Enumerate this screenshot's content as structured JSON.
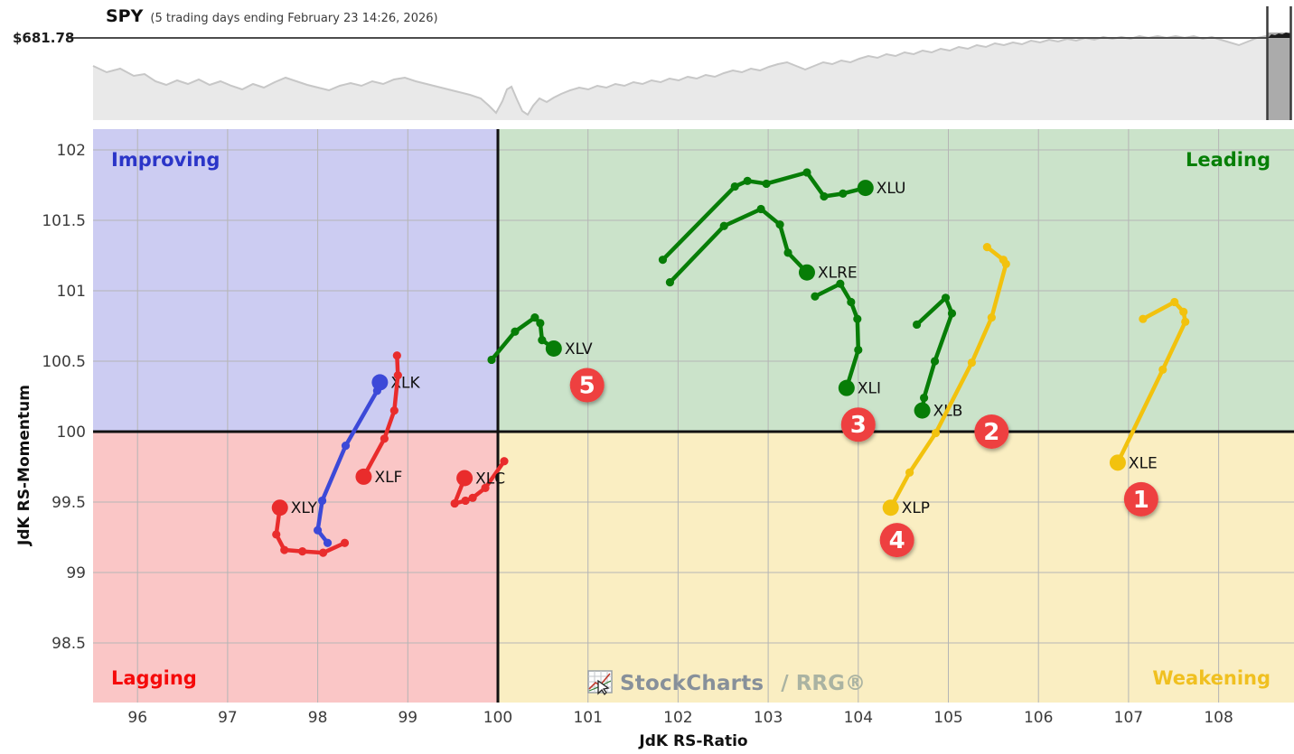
{
  "header": {
    "symbol": "SPY",
    "subtitle": "(5 trading days ending February 23 14:26, 2026)",
    "price": "$681.78",
    "sparkline": [
      [
        103,
        73
      ],
      [
        118,
        80
      ],
      [
        133,
        76
      ],
      [
        148,
        84
      ],
      [
        160,
        82
      ],
      [
        172,
        90
      ],
      [
        184,
        94
      ],
      [
        196,
        89
      ],
      [
        208,
        93
      ],
      [
        220,
        88
      ],
      [
        232,
        94
      ],
      [
        244,
        90
      ],
      [
        256,
        95
      ],
      [
        268,
        99
      ],
      [
        280,
        93
      ],
      [
        292,
        97
      ],
      [
        304,
        91
      ],
      [
        316,
        86
      ],
      [
        328,
        90
      ],
      [
        340,
        94
      ],
      [
        352,
        97
      ],
      [
        364,
        100
      ],
      [
        376,
        95
      ],
      [
        388,
        92
      ],
      [
        400,
        95
      ],
      [
        412,
        90
      ],
      [
        424,
        93
      ],
      [
        436,
        88
      ],
      [
        448,
        86
      ],
      [
        460,
        90
      ],
      [
        472,
        93
      ],
      [
        484,
        96
      ],
      [
        496,
        99
      ],
      [
        508,
        102
      ],
      [
        520,
        105
      ],
      [
        532,
        109
      ],
      [
        541,
        117
      ],
      [
        549,
        125
      ],
      [
        556,
        112
      ],
      [
        561,
        99
      ],
      [
        566,
        96
      ],
      [
        572,
        110
      ],
      [
        578,
        123
      ],
      [
        584,
        127
      ],
      [
        590,
        117
      ],
      [
        597,
        109
      ],
      [
        605,
        113
      ],
      [
        613,
        108
      ],
      [
        621,
        104
      ],
      [
        631,
        100
      ],
      [
        641,
        97
      ],
      [
        651,
        99
      ],
      [
        661,
        95
      ],
      [
        671,
        97
      ],
      [
        681,
        93
      ],
      [
        691,
        95
      ],
      [
        701,
        91
      ],
      [
        711,
        93
      ],
      [
        721,
        89
      ],
      [
        731,
        91
      ],
      [
        741,
        87
      ],
      [
        751,
        89
      ],
      [
        761,
        85
      ],
      [
        771,
        87
      ],
      [
        781,
        83
      ],
      [
        791,
        85
      ],
      [
        801,
        81
      ],
      [
        811,
        78
      ],
      [
        821,
        80
      ],
      [
        831,
        76
      ],
      [
        841,
        78
      ],
      [
        851,
        74
      ],
      [
        861,
        71
      ],
      [
        871,
        69
      ],
      [
        881,
        73
      ],
      [
        891,
        77
      ],
      [
        901,
        73
      ],
      [
        911,
        69
      ],
      [
        921,
        71
      ],
      [
        931,
        67
      ],
      [
        941,
        69
      ],
      [
        951,
        65
      ],
      [
        961,
        62
      ],
      [
        971,
        64
      ],
      [
        981,
        60
      ],
      [
        991,
        62
      ],
      [
        1001,
        58
      ],
      [
        1011,
        60
      ],
      [
        1021,
        56
      ],
      [
        1031,
        58
      ],
      [
        1041,
        54
      ],
      [
        1051,
        56
      ],
      [
        1061,
        52
      ],
      [
        1071,
        54
      ],
      [
        1081,
        50
      ],
      [
        1091,
        52
      ],
      [
        1101,
        48
      ],
      [
        1111,
        50
      ],
      [
        1121,
        47
      ],
      [
        1131,
        49
      ],
      [
        1141,
        45
      ],
      [
        1151,
        47
      ],
      [
        1161,
        44
      ],
      [
        1171,
        46
      ],
      [
        1181,
        43
      ],
      [
        1191,
        45
      ],
      [
        1201,
        42
      ],
      [
        1211,
        44
      ],
      [
        1221,
        41
      ],
      [
        1231,
        43
      ],
      [
        1241,
        41
      ],
      [
        1251,
        43
      ],
      [
        1261,
        40
      ],
      [
        1271,
        42
      ],
      [
        1281,
        40
      ],
      [
        1291,
        42
      ],
      [
        1301,
        40
      ],
      [
        1311,
        42
      ],
      [
        1321,
        40
      ],
      [
        1331,
        43
      ],
      [
        1341,
        41
      ],
      [
        1351,
        44
      ],
      [
        1361,
        47
      ],
      [
        1371,
        50
      ],
      [
        1381,
        46
      ],
      [
        1391,
        42
      ],
      [
        1401,
        40
      ],
      [
        1411,
        41
      ]
    ]
  },
  "watermark": {
    "brand": "StockCharts",
    "suffix": "/ RRG®"
  },
  "chart_data": {
    "type": "scatter",
    "subtype": "relative-rotation-graph",
    "xlabel": "JdK RS-Ratio",
    "ylabel": "JdK RS-Momentum",
    "xlim": [
      95.51,
      108.84
    ],
    "ylim": [
      98.08,
      102.15
    ],
    "xticks": [
      96,
      97,
      98,
      99,
      100,
      101,
      102,
      103,
      104,
      105,
      106,
      107,
      108
    ],
    "yticks": [
      98.5,
      99,
      99.5,
      100,
      100.5,
      101,
      101.5,
      102
    ],
    "center": [
      100,
      100
    ],
    "grid": true,
    "quadrants": [
      {
        "name": "Improving",
        "corner": "top-left",
        "fill": "#ccccf2",
        "label_color": "#2b35c8"
      },
      {
        "name": "Leading",
        "corner": "top-right",
        "fill": "#cbe3ca",
        "label_color": "#067f06"
      },
      {
        "name": "Lagging",
        "corner": "bottom-left",
        "fill": "#fac6c6",
        "label_color": "#f50a0a"
      },
      {
        "name": "Weakening",
        "corner": "bottom-right",
        "fill": "#faeec2",
        "label_color": "#f0c020"
      }
    ],
    "series": [
      {
        "name": "XLU",
        "color": "#077d07",
        "points": [
          [
            101.83,
            101.22
          ],
          [
            102.63,
            101.74
          ],
          [
            102.77,
            101.78
          ],
          [
            102.98,
            101.76
          ],
          [
            103.43,
            101.84
          ],
          [
            103.62,
            101.67
          ],
          [
            103.83,
            101.69
          ],
          [
            104.08,
            101.73
          ]
        ]
      },
      {
        "name": "XLRE",
        "color": "#077d07",
        "points": [
          [
            101.91,
            101.06
          ],
          [
            102.51,
            101.46
          ],
          [
            102.92,
            101.58
          ],
          [
            103.13,
            101.47
          ],
          [
            103.22,
            101.27
          ],
          [
            103.43,
            101.13
          ]
        ]
      },
      {
        "name": "XLV",
        "color": "#077d07",
        "points": [
          [
            99.93,
            100.51
          ],
          [
            100.19,
            100.71
          ],
          [
            100.41,
            100.81
          ],
          [
            100.47,
            100.77
          ],
          [
            100.49,
            100.65
          ],
          [
            100.62,
            100.59
          ]
        ]
      },
      {
        "name": "XLI",
        "color": "#077d07",
        "points": [
          [
            103.52,
            100.96
          ],
          [
            103.8,
            101.05
          ],
          [
            103.92,
            100.92
          ],
          [
            103.99,
            100.8
          ],
          [
            104.0,
            100.58
          ],
          [
            103.87,
            100.31
          ]
        ]
      },
      {
        "name": "XLB",
        "color": "#077d07",
        "points": [
          [
            104.65,
            100.76
          ],
          [
            104.97,
            100.95
          ],
          [
            105.04,
            100.84
          ],
          [
            104.85,
            100.5
          ],
          [
            104.73,
            100.24
          ],
          [
            104.71,
            100.15
          ]
        ]
      },
      {
        "name": "XLK",
        "color": "#3c49d8",
        "points": [
          [
            98.11,
            99.21
          ],
          [
            98.0,
            99.3
          ],
          [
            98.05,
            99.51
          ],
          [
            98.31,
            99.9
          ],
          [
            98.66,
            100.29
          ],
          [
            98.69,
            100.35
          ]
        ]
      },
      {
        "name": "XLF",
        "color": "#e92c2c",
        "points": [
          [
            98.88,
            100.54
          ],
          [
            98.89,
            100.4
          ],
          [
            98.85,
            100.15
          ],
          [
            98.74,
            99.95
          ],
          [
            98.51,
            99.68
          ]
        ]
      },
      {
        "name": "XLY",
        "color": "#e92c2c",
        "points": [
          [
            98.3,
            99.21
          ],
          [
            98.06,
            99.14
          ],
          [
            97.83,
            99.15
          ],
          [
            97.63,
            99.16
          ],
          [
            97.54,
            99.27
          ],
          [
            97.58,
            99.46
          ]
        ]
      },
      {
        "name": "XLC",
        "color": "#e92c2c",
        "points": [
          [
            100.07,
            99.79
          ],
          [
            99.86,
            99.6
          ],
          [
            99.72,
            99.53
          ],
          [
            99.64,
            99.51
          ],
          [
            99.52,
            99.49
          ],
          [
            99.63,
            99.67
          ]
        ]
      },
      {
        "name": "XLP",
        "color": "#f2c20e",
        "points": [
          [
            105.43,
            101.31
          ],
          [
            105.61,
            101.22
          ],
          [
            105.64,
            101.19
          ],
          [
            105.48,
            100.81
          ],
          [
            105.26,
            100.49
          ],
          [
            104.86,
            99.99
          ],
          [
            104.57,
            99.71
          ],
          [
            104.36,
            99.46
          ]
        ]
      },
      {
        "name": "XLE",
        "color": "#f2c20e",
        "points": [
          [
            107.16,
            100.8
          ],
          [
            107.51,
            100.92
          ],
          [
            107.61,
            100.85
          ],
          [
            107.63,
            100.78
          ],
          [
            107.38,
            100.44
          ],
          [
            106.88,
            99.78
          ]
        ]
      }
    ],
    "badges": [
      {
        "label": "1",
        "x": 107.14,
        "y": 99.52
      },
      {
        "label": "2",
        "x": 105.48,
        "y": 100.0
      },
      {
        "label": "3",
        "x": 104.0,
        "y": 100.05
      },
      {
        "label": "4",
        "x": 104.43,
        "y": 99.23
      },
      {
        "label": "5",
        "x": 100.99,
        "y": 100.33
      }
    ],
    "badge_color": "#ee4141"
  }
}
